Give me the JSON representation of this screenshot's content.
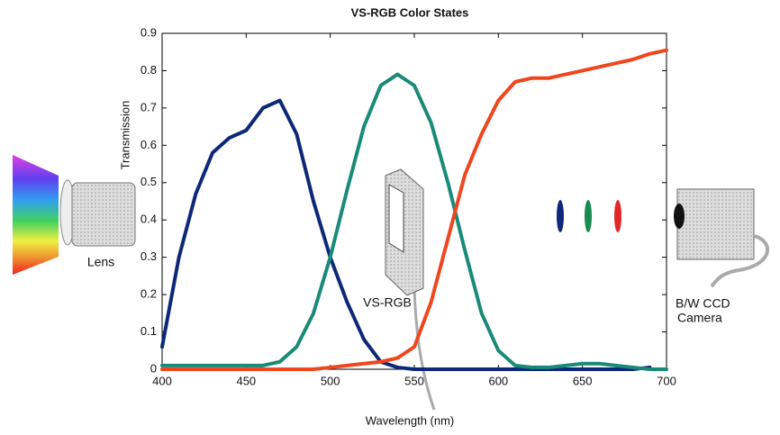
{
  "chart_data": {
    "type": "line",
    "title": "VS-RGB Color States",
    "x_label": "Wavelength (nm)",
    "y_label": "Transmission",
    "x": [
      400,
      410,
      420,
      430,
      440,
      450,
      460,
      470,
      480,
      490,
      500,
      510,
      520,
      530,
      540,
      550,
      560,
      570,
      580,
      590,
      600,
      610,
      620,
      630,
      640,
      650,
      660,
      670,
      680,
      690,
      700
    ],
    "series": [
      {
        "color": "#0d2878",
        "values": [
          0.06,
          0.3,
          0.47,
          0.58,
          0.62,
          0.64,
          0.7,
          0.72,
          0.63,
          0.45,
          0.3,
          0.18,
          0.08,
          0.02,
          0.005,
          0,
          0,
          0,
          0,
          0,
          0,
          0,
          0,
          0,
          0,
          0,
          0,
          0,
          0,
          0.005,
          null
        ]
      },
      {
        "color": "#1a8a78",
        "values": [
          0.01,
          0.01,
          0.01,
          0.01,
          0.01,
          0.01,
          0.01,
          0.02,
          0.06,
          0.15,
          0.3,
          0.48,
          0.65,
          0.76,
          0.79,
          0.76,
          0.66,
          0.5,
          0.32,
          0.15,
          0.05,
          0.01,
          0.005,
          0.005,
          0.01,
          0.015,
          0.015,
          0.01,
          0.005,
          0,
          0
        ]
      },
      {
        "color": "#f0461e",
        "values": [
          0,
          0,
          0,
          0,
          0,
          0,
          0,
          0,
          0,
          0,
          0.005,
          0.01,
          0.015,
          0.02,
          0.03,
          0.06,
          0.18,
          0.35,
          0.52,
          0.63,
          0.72,
          0.77,
          0.78,
          0.78,
          0.79,
          0.8,
          0.81,
          0.82,
          0.83,
          0.845,
          0.855
        ]
      }
    ],
    "xlim": [
      400,
      700
    ],
    "ylim": [
      0,
      0.9
    ],
    "xticks": [
      400,
      450,
      500,
      550,
      600,
      650,
      700
    ],
    "yticks": [
      0,
      0.1,
      0.2,
      0.3,
      0.4,
      0.5,
      0.6,
      0.7,
      0.8,
      0.9
    ],
    "annotations": [
      "Lens",
      "VS-RGB",
      "B/W CCD",
      "Camera"
    ]
  }
}
